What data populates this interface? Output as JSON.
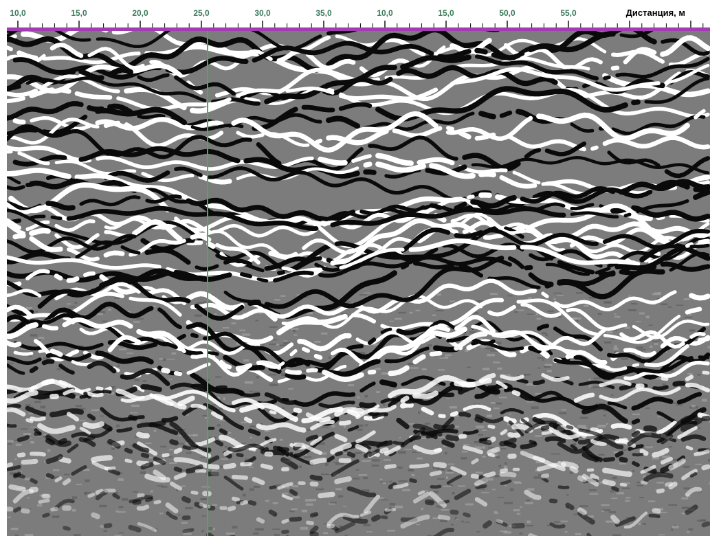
{
  "axis": {
    "title": "Дистанция, м",
    "ticks": [
      "10,0",
      "15,0",
      "20,0",
      "25,0",
      "30,0",
      "35,0",
      "10,0",
      "15,0",
      "50,0",
      "55,0"
    ]
  },
  "colors": {
    "axis_line": "#a23bb4",
    "marker_line": "#2ec23a",
    "tick_label": "#3a7a5a",
    "background_gray": "#7c7c7c"
  }
}
